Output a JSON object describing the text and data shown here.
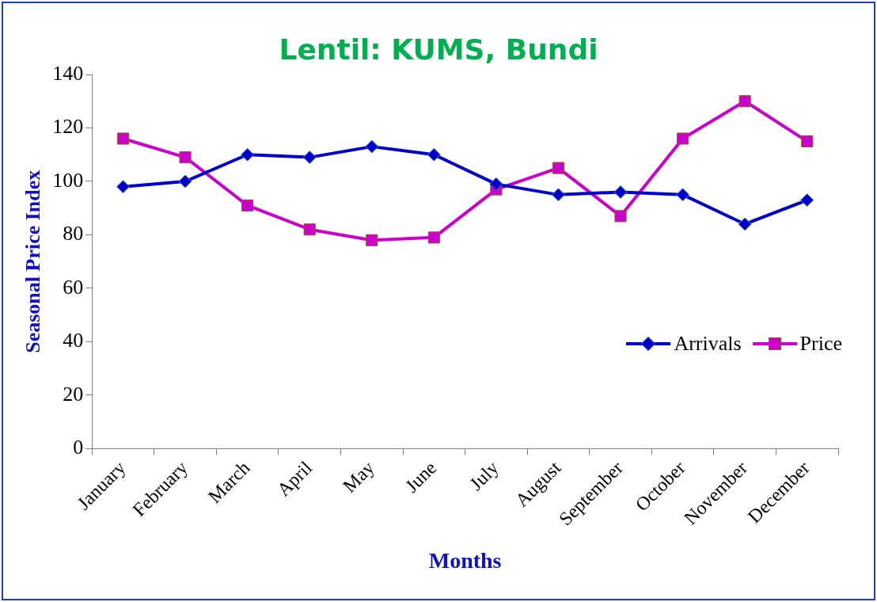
{
  "chart_data": {
    "type": "line",
    "title": "Lentil: KUMS, Bundi",
    "xlabel": "Months",
    "ylabel": "Seasonal Price Index",
    "categories": [
      "January",
      "February",
      "March",
      "April",
      "May",
      "June",
      "July",
      "August",
      "September",
      "October",
      "November",
      "December"
    ],
    "series": [
      {
        "name": "Arrivals",
        "color": "#0000cc",
        "marker": "diamond",
        "values": [
          98,
          100,
          110,
          109,
          113,
          110,
          99,
          95,
          96,
          95,
          84,
          93
        ]
      },
      {
        "name": "Price",
        "color": "#cc00cc",
        "marker": "square",
        "values": [
          116,
          109,
          91,
          82,
          78,
          79,
          97,
          105,
          87,
          116,
          130,
          115
        ]
      }
    ],
    "ylim": [
      0,
      140
    ],
    "yticks": [
      0,
      20,
      40,
      60,
      80,
      100,
      120,
      140
    ],
    "grid": false,
    "legend": "right",
    "line_style": "solid"
  }
}
